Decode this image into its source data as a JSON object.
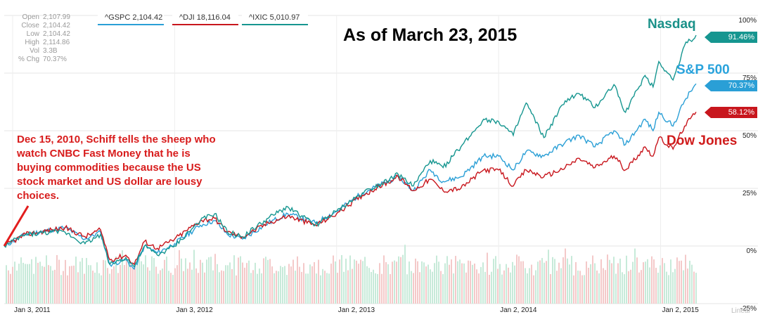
{
  "info": {
    "rows": [
      {
        "label": "Open",
        "value": "2,107.99"
      },
      {
        "label": "Close",
        "value": "2,104.42"
      },
      {
        "label": "Low",
        "value": "2,104.42"
      },
      {
        "label": "High",
        "value": "2,114.86"
      },
      {
        "label": "Vol",
        "value": "3.3B"
      },
      {
        "label": "% Chg",
        "value": "70.37%"
      }
    ]
  },
  "legend": [
    {
      "text": "^GSPC 2,104.42",
      "color": "#2a9fd6"
    },
    {
      "text": "^DJI 18,116.04",
      "color": "#c8161d"
    },
    {
      "text": "^IXIC 5,010.97",
      "color": "#169690"
    }
  ],
  "title": "As of March 23, 2015",
  "annotation": "Dec 15, 2010, Schiff tells the sheep who watch CNBC Fast Money that he is buying commodities because the US stock market and US dollar are lousy choices.",
  "scale_label": "Linear",
  "chart_data": {
    "type": "line",
    "title": "As of March 23, 2015",
    "xlabel": "",
    "ylabel": "",
    "x_ticks": [
      "Jan 3, 2011",
      "Jan 3, 2012",
      "Jan 2, 2013",
      "Jan 2, 2014",
      "Jan 2, 2015"
    ],
    "y_ticks": [
      "-25%",
      "0%",
      "25%",
      "50%",
      "75%",
      "100%"
    ],
    "ylim": [
      -25,
      100
    ],
    "grid": true,
    "x": [
      "2010-12-15",
      "2011-02-01",
      "2011-04-01",
      "2011-05-01",
      "2011-06-15",
      "2011-07-20",
      "2011-08-10",
      "2011-09-15",
      "2011-10-04",
      "2011-10-27",
      "2011-11-25",
      "2012-01-03",
      "2012-03-01",
      "2012-04-02",
      "2012-05-01",
      "2012-06-04",
      "2012-08-01",
      "2012-09-14",
      "2012-11-15",
      "2013-01-02",
      "2013-03-01",
      "2013-05-21",
      "2013-06-24",
      "2013-08-01",
      "2013-08-30",
      "2013-10-09",
      "2013-11-29",
      "2014-01-02",
      "2014-02-04",
      "2014-03-05",
      "2014-04-14",
      "2014-06-01",
      "2014-07-03",
      "2014-08-07",
      "2014-09-19",
      "2014-10-15",
      "2014-11-28",
      "2014-12-16",
      "2014-12-29",
      "2015-01-30",
      "2015-02-25",
      "2015-03-23"
    ],
    "series": [
      {
        "name": "^GSPC",
        "color": "#2a9fd6",
        "end_label": "70.37%",
        "display_name": "S&P 500",
        "values": [
          0,
          5,
          7,
          8,
          3,
          6,
          -8,
          -6,
          -10,
          0,
          -3,
          1,
          9,
          11,
          5,
          3,
          10,
          14,
          10,
          15,
          23,
          30,
          24,
          33,
          28,
          30,
          39,
          39,
          33,
          41,
          39,
          45,
          48,
          43,
          50,
          44,
          55,
          50,
          58,
          52,
          63,
          70.37
        ]
      },
      {
        "name": "^DJI",
        "color": "#c8161d",
        "end_label": "58.12%",
        "display_name": "Dow Jones",
        "values": [
          0,
          5,
          7,
          8,
          4,
          7,
          -6,
          -4,
          -8,
          2,
          -1,
          3,
          11,
          12,
          6,
          4,
          10,
          13,
          9,
          14,
          22,
          30,
          24,
          29,
          24,
          25,
          33,
          33,
          26,
          33,
          30,
          34,
          38,
          34,
          39,
          33,
          43,
          39,
          47,
          42,
          52,
          58.12
        ]
      },
      {
        "name": "^IXIC",
        "color": "#169690",
        "end_label": "91.46%",
        "display_name": "Nasdaq",
        "values": [
          0,
          5,
          6,
          6,
          1,
          5,
          -8,
          -5,
          -9,
          0,
          -4,
          0,
          11,
          14,
          6,
          4,
          12,
          17,
          9,
          15,
          23,
          31,
          26,
          37,
          34,
          43,
          55,
          54,
          48,
          62,
          47,
          63,
          66,
          60,
          70,
          58,
          74,
          69,
          80,
          72,
          87,
          91.46
        ]
      }
    ]
  }
}
